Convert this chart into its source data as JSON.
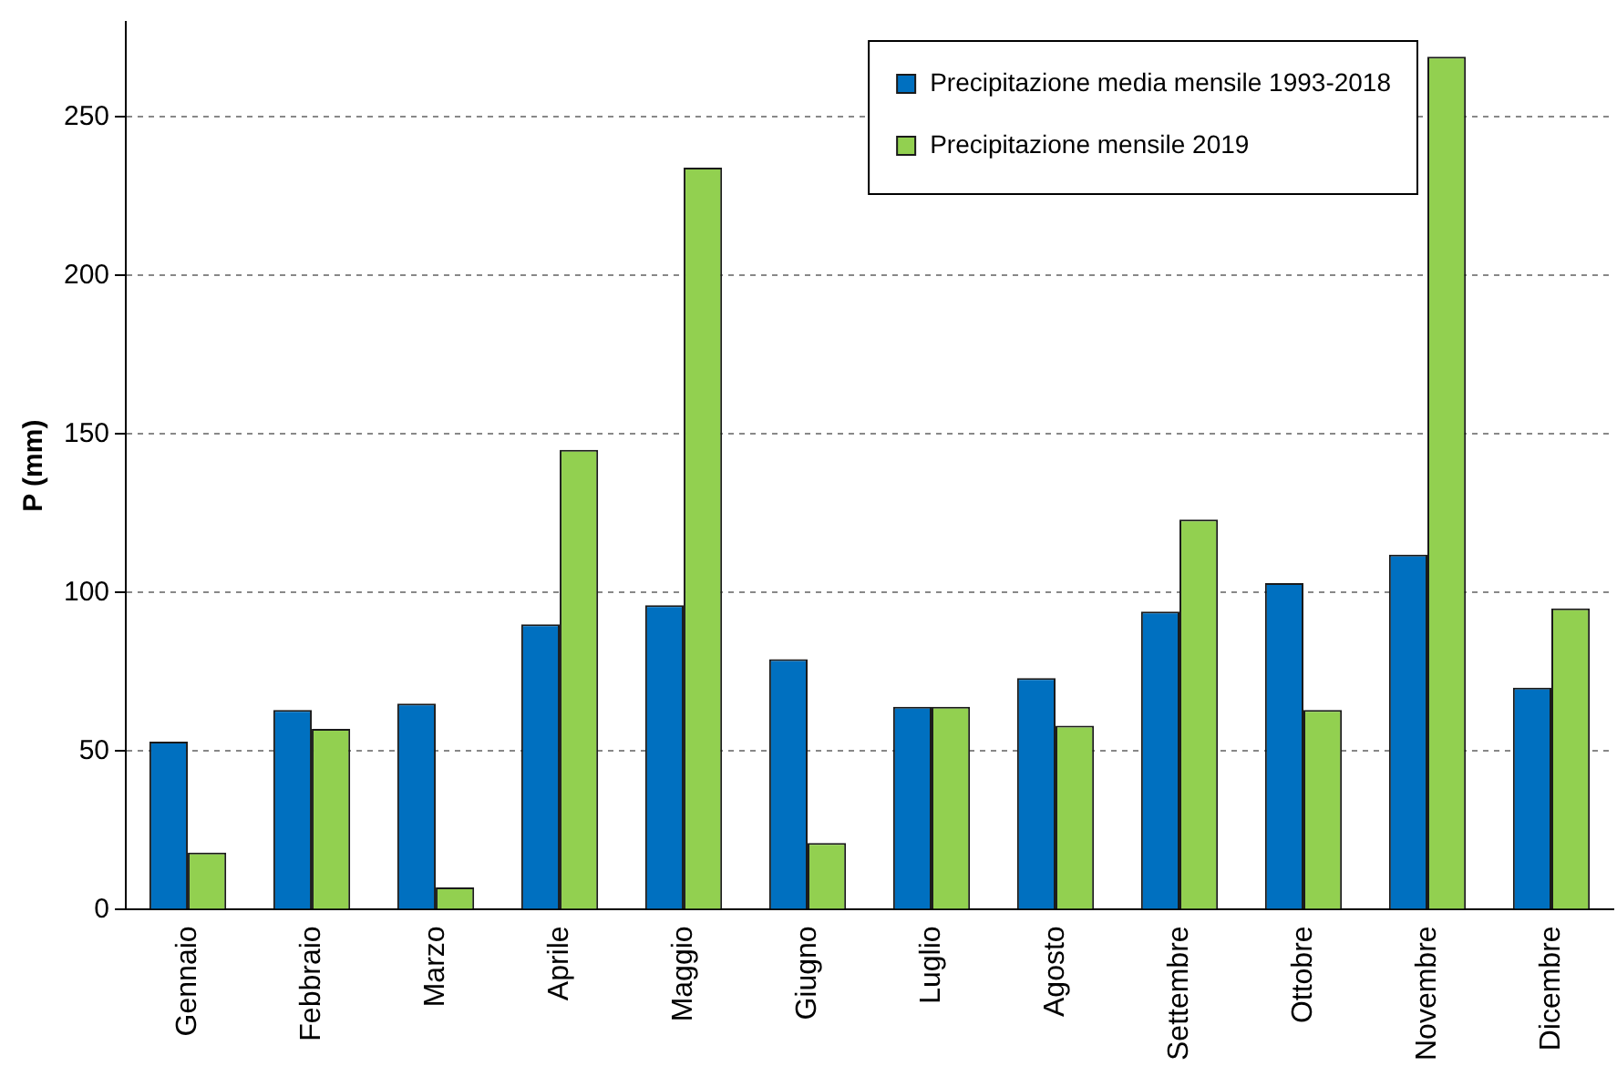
{
  "chart_data": {
    "type": "bar",
    "ylabel": "P (mm)",
    "categories": [
      "Gennaio",
      "Febbraio",
      "Marzo",
      "Aprile",
      "Maggio",
      "Giugno",
      "Luglio",
      "Agosto",
      "Settembre",
      "Ottobre",
      "Novembre",
      "Dicembre"
    ],
    "series": [
      {
        "name": "Precipitazione media mensile 1993-2018",
        "color": "#0070c0",
        "values": [
          53,
          63,
          65,
          90,
          96,
          79,
          64,
          73,
          94,
          103,
          112,
          70
        ]
      },
      {
        "name": "Precipitazione mensile 2019",
        "color": "#92d050",
        "values": [
          18,
          57,
          7,
          145,
          234,
          21,
          64,
          58,
          123,
          63,
          269,
          95
        ]
      }
    ],
    "ylim": [
      0,
      280
    ],
    "yticks": [
      0,
      50,
      100,
      150,
      200,
      250
    ],
    "grid": "y",
    "legend": "top right"
  }
}
